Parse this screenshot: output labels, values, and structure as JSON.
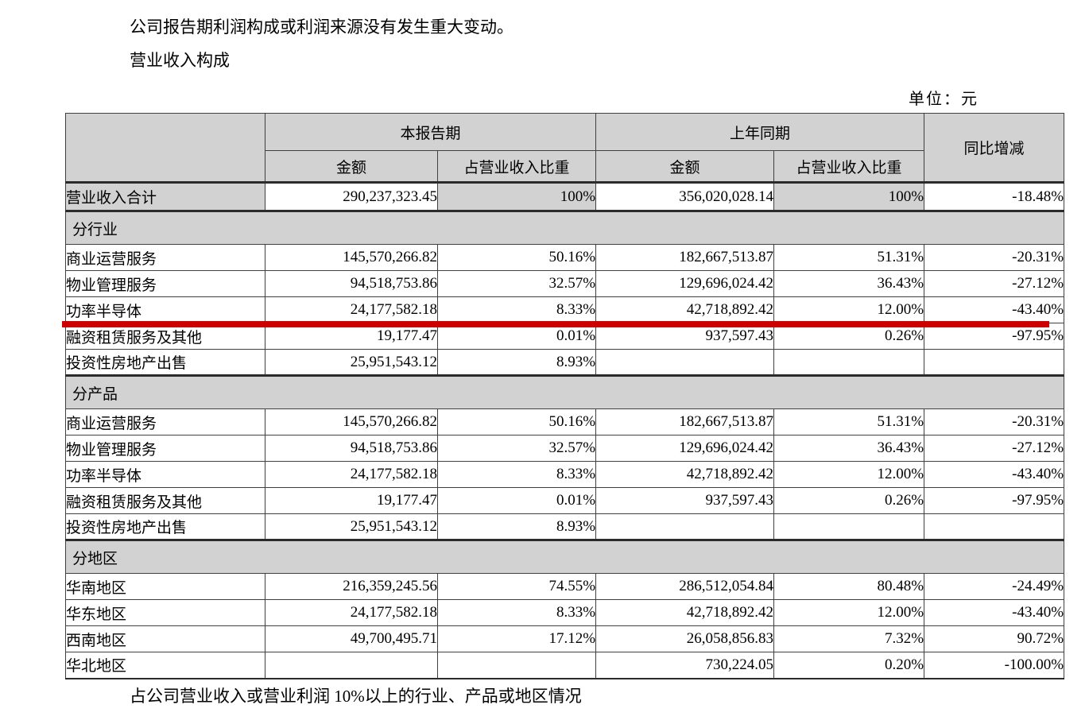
{
  "page": {
    "intro_line": "公司报告期利润构成或利润来源没有发生重大变动。",
    "section_title": "营业收入构成",
    "unit_label": "单位：元",
    "footer_line": "占公司营业收入或营业利润 10%以上的行业、产品或地区情况"
  },
  "colors": {
    "highlight_red": "#cc0000",
    "band_gray": "#d2d2d2"
  },
  "table": {
    "header": {
      "current_period": "本报告期",
      "prior_period": "上年同期",
      "yoy_change": "同比增减",
      "amount": "金额",
      "share": "占营业收入比重"
    },
    "total": {
      "label": "营业收入合计",
      "cells": [
        "290,237,323.45",
        "100%",
        "356,020,028.14",
        "100%",
        "-18.48%"
      ]
    },
    "sections": [
      {
        "title": "分行业",
        "rows": [
          {
            "label": "商业运营服务",
            "cells": [
              "145,570,266.82",
              "50.16%",
              "182,667,513.87",
              "51.31%",
              "-20.31%"
            ],
            "highlight": false
          },
          {
            "label": "物业管理服务",
            "cells": [
              "94,518,753.86",
              "32.57%",
              "129,696,024.42",
              "36.43%",
              "-27.12%"
            ],
            "highlight": false
          },
          {
            "label": "功率半导体",
            "cells": [
              "24,177,582.18",
              "8.33%",
              "42,718,892.42",
              "12.00%",
              "-43.40%"
            ],
            "highlight": true
          },
          {
            "label": "融资租赁服务及其他",
            "cells": [
              "19,177.47",
              "0.01%",
              "937,597.43",
              "0.26%",
              "-97.95%"
            ],
            "highlight": false
          },
          {
            "label": "投资性房地产出售",
            "cells": [
              "25,951,543.12",
              "8.93%",
              "",
              "",
              ""
            ],
            "highlight": false
          }
        ]
      },
      {
        "title": "分产品",
        "rows": [
          {
            "label": "商业运营服务",
            "cells": [
              "145,570,266.82",
              "50.16%",
              "182,667,513.87",
              "51.31%",
              "-20.31%"
            ],
            "highlight": false
          },
          {
            "label": "物业管理服务",
            "cells": [
              "94,518,753.86",
              "32.57%",
              "129,696,024.42",
              "36.43%",
              "-27.12%"
            ],
            "highlight": false
          },
          {
            "label": "功率半导体",
            "cells": [
              "24,177,582.18",
              "8.33%",
              "42,718,892.42",
              "12.00%",
              "-43.40%"
            ],
            "highlight": false
          },
          {
            "label": "融资租赁服务及其他",
            "cells": [
              "19,177.47",
              "0.01%",
              "937,597.43",
              "0.26%",
              "-97.95%"
            ],
            "highlight": false
          },
          {
            "label": "投资性房地产出售",
            "cells": [
              "25,951,543.12",
              "8.93%",
              "",
              "",
              ""
            ],
            "highlight": false
          }
        ]
      },
      {
        "title": "分地区",
        "rows": [
          {
            "label": "华南地区",
            "cells": [
              "216,359,245.56",
              "74.55%",
              "286,512,054.84",
              "80.48%",
              "-24.49%"
            ],
            "highlight": false
          },
          {
            "label": "华东地区",
            "cells": [
              "24,177,582.18",
              "8.33%",
              "42,718,892.42",
              "12.00%",
              "-43.40%"
            ],
            "highlight": false
          },
          {
            "label": "西南地区",
            "cells": [
              "49,700,495.71",
              "17.12%",
              "26,058,856.83",
              "7.32%",
              "90.72%"
            ],
            "highlight": false
          },
          {
            "label": "华北地区",
            "cells": [
              "",
              "",
              "730,224.05",
              "0.20%",
              "-100.00%"
            ],
            "highlight": false
          }
        ]
      }
    ]
  }
}
